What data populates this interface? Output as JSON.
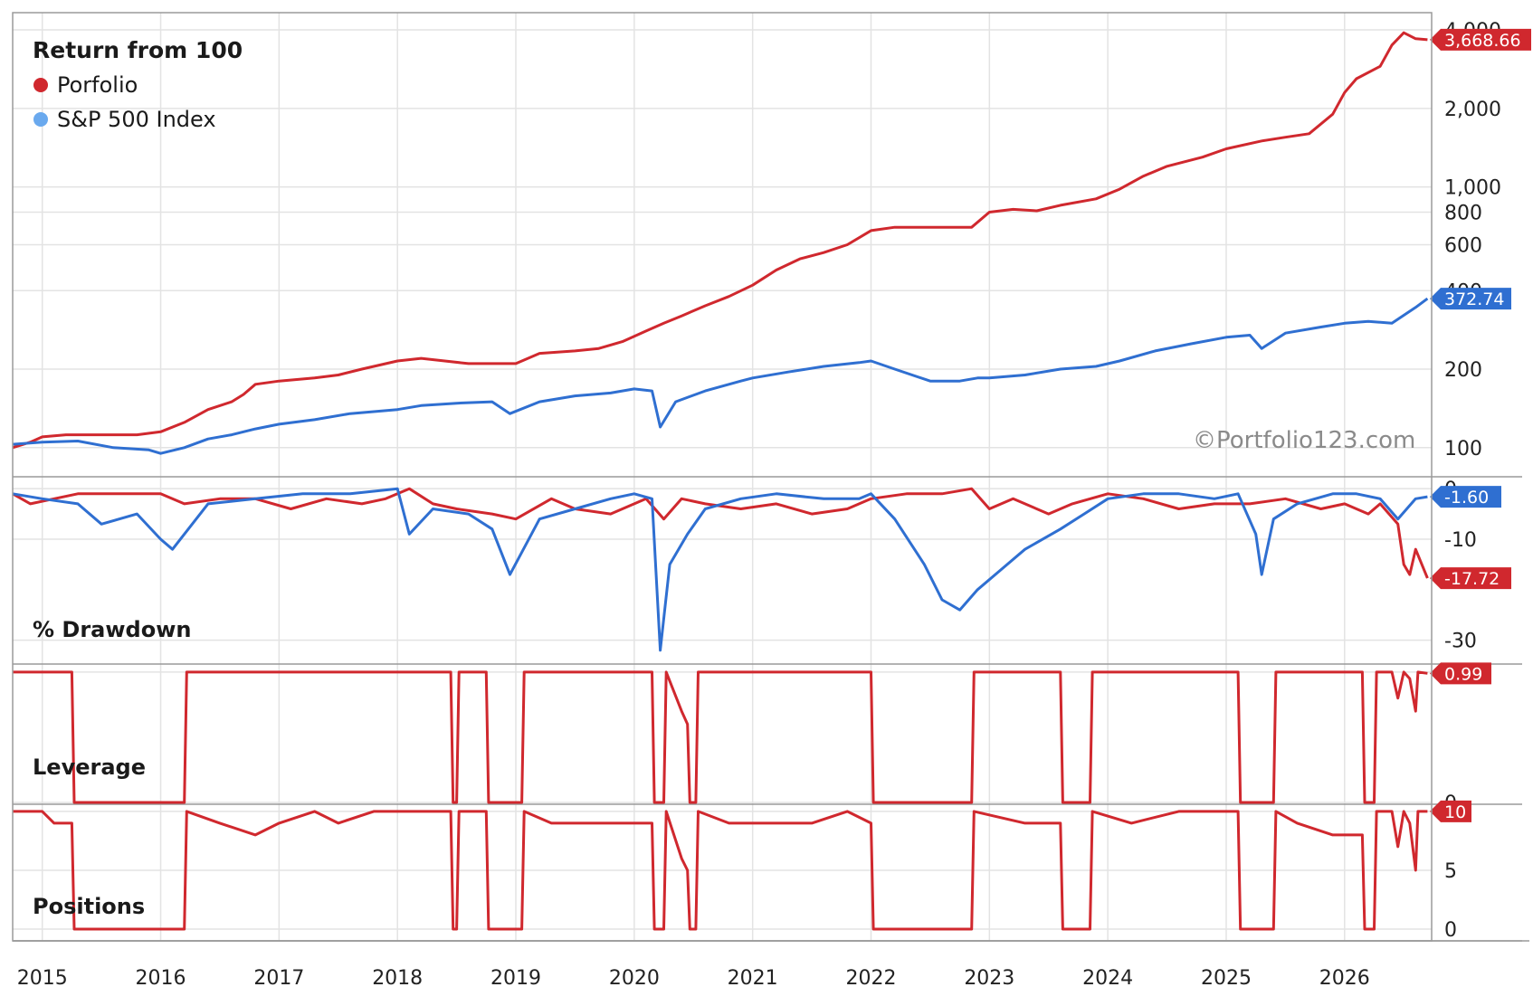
{
  "chart_data": {
    "type": "line",
    "watermark": "©Portfolio123.com",
    "colors": {
      "portfolio": "#d0282e",
      "benchmark": "#2f6fd1",
      "benchmark_dot": "#6aa9ee",
      "grid": "#e3e3e3",
      "frame": "#9a9a9a"
    },
    "x_ticks": [
      "2015",
      "2016",
      "2017",
      "2018",
      "2019",
      "2020",
      "2021",
      "2022",
      "2023",
      "2024",
      "2025",
      "2026"
    ],
    "x_range": [
      2014.75,
      2026.72
    ],
    "panels": [
      {
        "id": "return",
        "label": "Return from 100",
        "scale": "log",
        "ylim": [
          90,
          4300
        ],
        "y_ticks": [
          {
            "value": 100,
            "label": "100"
          },
          {
            "value": 200,
            "label": "200"
          },
          {
            "value": 400,
            "label": "400"
          },
          {
            "value": 600,
            "label": "600"
          },
          {
            "value": 800,
            "label": "800"
          },
          {
            "value": 1000,
            "label": "1,000"
          },
          {
            "value": 2000,
            "label": "2,000"
          },
          {
            "value": 4000,
            "label": "4,000"
          }
        ],
        "series": [
          {
            "name": "Porfolio",
            "color": "#d0282e",
            "last_label": "3,668.66",
            "x": [
              2014.75,
              2014.9,
              2015.0,
              2015.2,
              2015.5,
              2015.8,
              2016.0,
              2016.2,
              2016.4,
              2016.6,
              2016.7,
              2016.8,
              2017.0,
              2017.3,
              2017.5,
              2017.7,
              2018.0,
              2018.2,
              2018.4,
              2018.6,
              2018.8,
              2019.0,
              2019.2,
              2019.5,
              2019.7,
              2019.9,
              2020.1,
              2020.25,
              2020.4,
              2020.6,
              2020.8,
              2021.0,
              2021.2,
              2021.4,
              2021.6,
              2021.8,
              2022.0,
              2022.2,
              2022.4,
              2022.6,
              2022.85,
              2023.0,
              2023.2,
              2023.4,
              2023.6,
              2023.9,
              2024.1,
              2024.3,
              2024.5,
              2024.8,
              2025.0,
              2025.3,
              2025.5,
              2025.7,
              2025.9,
              2026.0,
              2026.1,
              2026.3,
              2026.4,
              2026.5,
              2026.6,
              2026.7
            ],
            "y": [
              100,
              105,
              110,
              112,
              112,
              112,
              115,
              125,
              140,
              150,
              160,
              175,
              180,
              185,
              190,
              200,
              215,
              220,
              215,
              210,
              210,
              210,
              230,
              235,
              240,
              255,
              280,
              300,
              320,
              350,
              380,
              420,
              480,
              530,
              560,
              600,
              680,
              700,
              700,
              700,
              700,
              800,
              820,
              810,
              850,
              900,
              980,
              1100,
              1200,
              1300,
              1400,
              1500,
              1550,
              1600,
              1900,
              2300,
              2600,
              2900,
              3500,
              3900,
              3700,
              3668.66
            ]
          },
          {
            "name": "S&P 500 Index",
            "color": "#2f6fd1",
            "last_label": "372.74",
            "x": [
              2014.75,
              2015.0,
              2015.3,
              2015.6,
              2015.9,
              2016.0,
              2016.2,
              2016.4,
              2016.6,
              2016.8,
              2017.0,
              2017.3,
              2017.6,
              2018.0,
              2018.2,
              2018.5,
              2018.8,
              2018.95,
              2019.2,
              2019.5,
              2019.8,
              2020.0,
              2020.15,
              2020.22,
              2020.35,
              2020.6,
              2020.9,
              2021.0,
              2021.3,
              2021.6,
              2021.9,
              2022.0,
              2022.2,
              2022.5,
              2022.75,
              2022.9,
              2023.0,
              2023.3,
              2023.6,
              2023.9,
              2024.1,
              2024.4,
              2024.7,
              2025.0,
              2025.2,
              2025.3,
              2025.5,
              2025.8,
              2026.0,
              2026.2,
              2026.4,
              2026.6,
              2026.7
            ],
            "y": [
              103,
              105,
              106,
              100,
              98,
              95,
              100,
              108,
              112,
              118,
              123,
              128,
              135,
              140,
              145,
              148,
              150,
              135,
              150,
              158,
              162,
              168,
              165,
              120,
              150,
              165,
              180,
              185,
              195,
              205,
              212,
              215,
              200,
              180,
              180,
              185,
              185,
              190,
              200,
              205,
              215,
              235,
              250,
              265,
              270,
              240,
              275,
              290,
              300,
              305,
              300,
              345,
              372.74
            ]
          }
        ]
      },
      {
        "id": "drawdown",
        "label": "% Drawdown",
        "ylim": [
          -34,
          2
        ],
        "y_ticks": [
          {
            "value": 0,
            "label": "0"
          },
          {
            "value": -10,
            "label": "-10"
          },
          {
            "value": -30,
            "label": "-30"
          }
        ],
        "series": [
          {
            "name": "Porfolio",
            "color": "#d0282e",
            "last_label": "-17.72",
            "x": [
              2014.75,
              2014.9,
              2015.1,
              2015.3,
              2015.6,
              2015.9,
              2016.0,
              2016.2,
              2016.5,
              2016.8,
              2017.1,
              2017.4,
              2017.7,
              2017.9,
              2018.1,
              2018.3,
              2018.5,
              2018.8,
              2019.0,
              2019.3,
              2019.5,
              2019.8,
              2020.1,
              2020.25,
              2020.4,
              2020.6,
              2020.9,
              2021.2,
              2021.5,
              2021.8,
              2022.0,
              2022.3,
              2022.6,
              2022.85,
              2023.0,
              2023.2,
              2023.5,
              2023.7,
              2024.0,
              2024.3,
              2024.6,
              2024.9,
              2025.2,
              2025.5,
              2025.8,
              2026.0,
              2026.2,
              2026.3,
              2026.45,
              2026.5,
              2026.55,
              2026.6,
              2026.7
            ],
            "y": [
              -1,
              -3,
              -2,
              -1,
              -1,
              -1,
              -1,
              -3,
              -2,
              -2,
              -4,
              -2,
              -3,
              -2,
              0,
              -3,
              -4,
              -5,
              -6,
              -2,
              -4,
              -5,
              -2,
              -6,
              -2,
              -3,
              -4,
              -3,
              -5,
              -4,
              -2,
              -1,
              -1,
              0,
              -4,
              -2,
              -5,
              -3,
              -1,
              -2,
              -4,
              -3,
              -3,
              -2,
              -4,
              -3,
              -5,
              -3,
              -7,
              -15,
              -17,
              -12,
              -17.72
            ]
          },
          {
            "name": "S&P 500 Index",
            "color": "#2f6fd1",
            "last_label": "-1.60",
            "x": [
              2014.75,
              2015.0,
              2015.3,
              2015.5,
              2015.8,
              2016.0,
              2016.1,
              2016.4,
              2016.8,
              2017.2,
              2017.6,
              2018.0,
              2018.1,
              2018.3,
              2018.6,
              2018.8,
              2018.95,
              2019.2,
              2019.5,
              2019.8,
              2020.0,
              2020.15,
              2020.22,
              2020.3,
              2020.45,
              2020.6,
              2020.9,
              2021.2,
              2021.6,
              2021.9,
              2022.0,
              2022.2,
              2022.45,
              2022.6,
              2022.75,
              2022.9,
              2023.1,
              2023.3,
              2023.6,
              2023.8,
              2024.0,
              2024.3,
              2024.6,
              2024.9,
              2025.1,
              2025.25,
              2025.3,
              2025.4,
              2025.6,
              2025.9,
              2026.1,
              2026.3,
              2026.45,
              2026.6,
              2026.7
            ],
            "y": [
              -1,
              -2,
              -3,
              -7,
              -5,
              -10,
              -12,
              -3,
              -2,
              -1,
              -1,
              0,
              -9,
              -4,
              -5,
              -8,
              -17,
              -6,
              -4,
              -2,
              -1,
              -2,
              -32,
              -15,
              -9,
              -4,
              -2,
              -1,
              -2,
              -2,
              -1,
              -6,
              -15,
              -22,
              -24,
              -20,
              -16,
              -12,
              -8,
              -5,
              -2,
              -1,
              -1,
              -2,
              -1,
              -9,
              -17,
              -6,
              -3,
              -1,
              -1,
              -2,
              -6,
              -2,
              -1.6
            ]
          }
        ]
      },
      {
        "id": "leverage",
        "label": "Leverage",
        "ylim": [
          0,
          1.02
        ],
        "y_ticks": [
          {
            "value": 1,
            "label": "1"
          },
          {
            "value": 0,
            "label": "0"
          }
        ],
        "series": [
          {
            "name": "Porfolio",
            "color": "#d0282e",
            "last_label": "0.99",
            "x": [
              2014.75,
              2015.25,
              2015.27,
              2016.2,
              2016.22,
              2018.45,
              2018.47,
              2018.5,
              2018.52,
              2018.75,
              2018.77,
              2019.05,
              2019.07,
              2020.15,
              2020.17,
              2020.25,
              2020.27,
              2020.4,
              2020.45,
              2020.47,
              2020.52,
              2020.54,
              2022.0,
              2022.02,
              2022.85,
              2022.87,
              2023.6,
              2023.62,
              2023.85,
              2023.87,
              2025.1,
              2025.12,
              2025.4,
              2025.42,
              2026.15,
              2026.17,
              2026.25,
              2026.27,
              2026.4,
              2026.45,
              2026.5,
              2026.55,
              2026.6,
              2026.62,
              2026.7
            ],
            "y": [
              1,
              1,
              0,
              0,
              1,
              1,
              0,
              0,
              1,
              1,
              0,
              0,
              1,
              1,
              0,
              0,
              1,
              0.7,
              0.6,
              0,
              0,
              1,
              1,
              0,
              0,
              1,
              1,
              0,
              0,
              1,
              1,
              0,
              0,
              1,
              1,
              0,
              0,
              1,
              1,
              0.8,
              1,
              0.95,
              0.7,
              1,
              0.99
            ]
          }
        ]
      },
      {
        "id": "positions",
        "label": "Positions",
        "ylim": [
          0,
          10.3
        ],
        "y_ticks": [
          {
            "value": 10,
            "label": "10"
          },
          {
            "value": 5,
            "label": "5"
          },
          {
            "value": 0,
            "label": "0"
          }
        ],
        "series": [
          {
            "name": "Porfolio",
            "color": "#d0282e",
            "last_label": "10",
            "x": [
              2014.75,
              2015.0,
              2015.1,
              2015.25,
              2015.27,
              2016.2,
              2016.22,
              2016.5,
              2016.8,
              2017.0,
              2017.3,
              2017.5,
              2017.8,
              2018.0,
              2018.45,
              2018.47,
              2018.5,
              2018.52,
              2018.75,
              2018.77,
              2019.05,
              2019.07,
              2019.3,
              2020.15,
              2020.17,
              2020.25,
              2020.27,
              2020.4,
              2020.45,
              2020.47,
              2020.52,
              2020.54,
              2020.8,
              2021.0,
              2021.5,
              2021.8,
              2022.0,
              2022.02,
              2022.85,
              2022.87,
              2023.3,
              2023.6,
              2023.62,
              2023.85,
              2023.87,
              2024.2,
              2024.6,
              2025.1,
              2025.12,
              2025.4,
              2025.42,
              2025.6,
              2025.9,
              2026.1,
              2026.15,
              2026.17,
              2026.25,
              2026.27,
              2026.4,
              2026.45,
              2026.5,
              2026.55,
              2026.6,
              2026.62,
              2026.7
            ],
            "y": [
              10,
              10,
              9,
              9,
              0,
              0,
              10,
              9,
              8,
              9,
              10,
              9,
              10,
              10,
              10,
              0,
              0,
              10,
              10,
              0,
              0,
              10,
              9,
              9,
              0,
              0,
              10,
              6,
              5,
              0,
              0,
              10,
              9,
              9,
              9,
              10,
              9,
              0,
              0,
              10,
              9,
              9,
              0,
              0,
              10,
              9,
              10,
              10,
              0,
              0,
              10,
              9,
              8,
              8,
              8,
              0,
              0,
              10,
              10,
              7,
              10,
              9,
              5,
              10,
              10
            ]
          }
        ]
      }
    ]
  }
}
